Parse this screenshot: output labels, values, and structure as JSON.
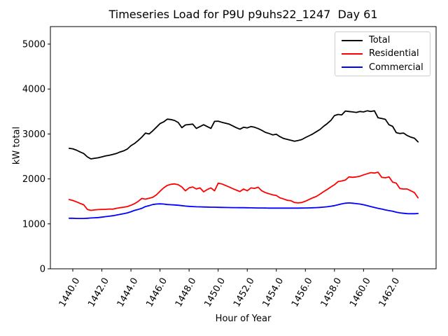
{
  "window_title": "Timeseries Load for P9U p9uhs22_1247  Day 61",
  "chart_data": {
    "type": "line",
    "title": "Timeseries Load for P9U p9uhs22_1247  Day 61",
    "xlabel": "Hour of Year",
    "ylabel": "kW total",
    "xlim": [
      1438.46,
      1464.99
    ],
    "ylim": [
      0,
      5389
    ],
    "xticks": [
      1440,
      1442,
      1444,
      1446,
      1448,
      1450,
      1452,
      1454,
      1456,
      1458,
      1460,
      1462
    ],
    "xtick_labels": [
      "1440.0",
      "1442.0",
      "1444.0",
      "1446.0",
      "1448.0",
      "1450.0",
      "1452.0",
      "1454.0",
      "1456.0",
      "1458.0",
      "1460.0",
      "1462.0"
    ],
    "xtick_rotation_deg": 60,
    "yticks": [
      0,
      1000,
      2000,
      3000,
      4000,
      5000
    ],
    "ytick_labels": [
      "0",
      "1000",
      "2000",
      "3000",
      "4000",
      "5000"
    ],
    "grid": false,
    "legend_position": "upper right",
    "x_start": 1439.75,
    "x_step": 0.25,
    "series": [
      {
        "name": "Total",
        "color": "#000000",
        "values": [
          2680,
          2670,
          2640,
          2600,
          2565,
          2490,
          2445,
          2460,
          2470,
          2490,
          2510,
          2525,
          2545,
          2565,
          2600,
          2625,
          2665,
          2740,
          2790,
          2855,
          2930,
          3020,
          3000,
          3070,
          3150,
          3230,
          3270,
          3330,
          3320,
          3300,
          3255,
          3140,
          3200,
          3210,
          3220,
          3125,
          3165,
          3205,
          3165,
          3125,
          3280,
          3285,
          3260,
          3240,
          3220,
          3180,
          3140,
          3105,
          3150,
          3135,
          3165,
          3150,
          3120,
          3080,
          3035,
          3010,
          2980,
          2995,
          2940,
          2900,
          2880,
          2860,
          2840,
          2855,
          2875,
          2920,
          2960,
          3000,
          3050,
          3100,
          3170,
          3230,
          3300,
          3410,
          3435,
          3425,
          3510,
          3500,
          3490,
          3480,
          3500,
          3490,
          3515,
          3500,
          3515,
          3360,
          3345,
          3325,
          3205,
          3170,
          3030,
          3010,
          3020,
          2965,
          2930,
          2905,
          2825
        ]
      },
      {
        "name": "Residential",
        "color": "#ff0000",
        "values": [
          1540,
          1520,
          1490,
          1455,
          1425,
          1320,
          1300,
          1310,
          1318,
          1320,
          1322,
          1330,
          1327,
          1345,
          1360,
          1370,
          1385,
          1415,
          1450,
          1500,
          1565,
          1550,
          1570,
          1590,
          1645,
          1725,
          1800,
          1855,
          1880,
          1890,
          1870,
          1820,
          1735,
          1800,
          1820,
          1775,
          1800,
          1713,
          1765,
          1800,
          1735,
          1905,
          1890,
          1855,
          1820,
          1785,
          1750,
          1720,
          1775,
          1735,
          1800,
          1790,
          1815,
          1735,
          1695,
          1670,
          1645,
          1630,
          1580,
          1555,
          1525,
          1515,
          1475,
          1465,
          1475,
          1505,
          1540,
          1580,
          1610,
          1660,
          1715,
          1765,
          1820,
          1870,
          1940,
          1955,
          1975,
          2045,
          2035,
          2045,
          2060,
          2090,
          2115,
          2140,
          2130,
          2150,
          2035,
          2025,
          2045,
          1930,
          1905,
          1785,
          1775,
          1775,
          1735,
          1695,
          1580
        ]
      },
      {
        "name": "Commercial",
        "color": "#0000ff",
        "values": [
          1125,
          1125,
          1120,
          1120,
          1120,
          1125,
          1130,
          1135,
          1140,
          1150,
          1160,
          1170,
          1180,
          1195,
          1210,
          1225,
          1245,
          1270,
          1300,
          1320,
          1345,
          1385,
          1405,
          1430,
          1440,
          1445,
          1440,
          1430,
          1425,
          1420,
          1415,
          1405,
          1395,
          1390,
          1385,
          1380,
          1378,
          1375,
          1373,
          1371,
          1370,
          1368,
          1366,
          1365,
          1363,
          1362,
          1361,
          1360,
          1360,
          1358,
          1356,
          1355,
          1354,
          1353,
          1352,
          1351,
          1350,
          1350,
          1350,
          1350,
          1350,
          1350,
          1350,
          1350,
          1352,
          1353,
          1355,
          1358,
          1362,
          1366,
          1372,
          1380,
          1392,
          1405,
          1425,
          1445,
          1460,
          1465,
          1460,
          1450,
          1440,
          1425,
          1405,
          1385,
          1365,
          1345,
          1330,
          1310,
          1295,
          1280,
          1260,
          1245,
          1235,
          1228,
          1225,
          1225,
          1230
        ]
      }
    ]
  }
}
